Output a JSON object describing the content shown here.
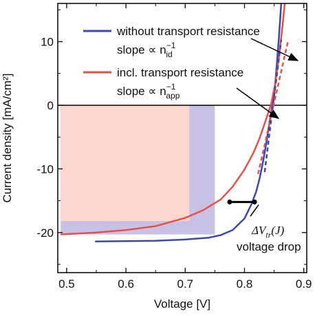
{
  "chart_data": {
    "type": "line",
    "xlabel": "Voltage [V]",
    "ylabel": "Current density [mA/cm²]",
    "xlim": [
      0.485,
      0.905
    ],
    "ylim": [
      -26.3,
      16.0
    ],
    "x_ticks": [
      0.5,
      0.6,
      0.7,
      0.8,
      0.9
    ],
    "x_tick_labels": [
      "0.5",
      "0.6",
      "0.7",
      "0.8",
      "0.9"
    ],
    "y_ticks": [
      10,
      0,
      -10,
      -20
    ],
    "y_tick_labels": [
      "10",
      "0",
      "-10",
      "-20"
    ],
    "grid": false,
    "legend_position": "top-right",
    "series": [
      {
        "name": "without transport resistance",
        "legend_suffix": "slope ∝ n_id^-1",
        "color": "#3b49a8",
        "x": [
          0.548,
          0.6,
          0.65,
          0.7,
          0.74,
          0.76,
          0.78,
          0.8,
          0.812,
          0.82,
          0.826,
          0.832,
          0.837,
          0.842,
          0.846,
          0.85,
          0.854,
          0.858,
          0.862
        ],
        "y": [
          -21.4,
          -21.35,
          -21.3,
          -21.1,
          -20.8,
          -20.4,
          -19.6,
          -17.8,
          -15.5,
          -13.5,
          -11.3,
          -8.5,
          -5.8,
          -2.8,
          -0.6,
          1.5,
          5.8,
          10.6,
          16.0
        ]
      },
      {
        "name": "incl. transport resistance",
        "legend_suffix": "slope ∝ n_app^-1",
        "color": "#e0524a",
        "x": [
          0.49,
          0.55,
          0.6,
          0.65,
          0.7,
          0.73,
          0.76,
          0.78,
          0.8,
          0.815,
          0.825,
          0.835,
          0.845,
          0.852,
          0.858,
          0.863,
          0.868
        ],
        "y": [
          -20.3,
          -20.0,
          -19.6,
          -19.0,
          -17.7,
          -16.5,
          -14.8,
          -12.8,
          -10.1,
          -7.5,
          -5.3,
          -2.6,
          0.2,
          3.5,
          7.5,
          11.5,
          16.0
        ]
      }
    ],
    "slope_lines": [
      {
        "color": "#3b49a8",
        "style": "dashed",
        "x": [
          0.834,
          0.862
        ],
        "y": [
          -10.5,
          10.3
        ]
      },
      {
        "color": "#e0524a",
        "style": "dashed",
        "x": [
          0.823,
          0.874
        ],
        "y": [
          -10.8,
          10.3
        ]
      }
    ],
    "shaded_regions": [
      {
        "color": "#c9c1e3",
        "x": [
          0.49,
          0.75
        ],
        "y": [
          -20.3,
          0
        ]
      },
      {
        "color": "#fcd6cf",
        "x": [
          0.49,
          0.707
        ],
        "y": [
          -18.2,
          0
        ]
      }
    ],
    "voltage_drop_marker": {
      "x": [
        0.775,
        0.817
      ],
      "y": -15.2
    },
    "annotations": {
      "dv_symbol": "ΔV",
      "dv_subscript": "tr",
      "dv_argument": "(J)",
      "voltage_drop": "voltage drop"
    },
    "legend": [
      {
        "label": "without transport resistance",
        "slope_text": "slope ∝ n",
        "slope_sub": "id",
        "slope_sup": "−1"
      },
      {
        "label": "incl. transport resistance",
        "slope_text": "slope ∝ n",
        "slope_sub": "app",
        "slope_sup": "−1"
      }
    ]
  }
}
